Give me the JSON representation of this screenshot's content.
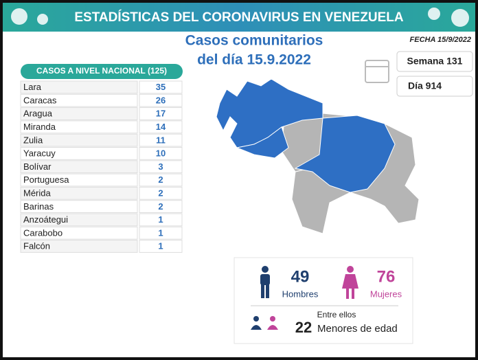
{
  "header": {
    "title": "ESTADÍSTICAS DEL CORONAVIRUS EN VENEZUELA",
    "subtitle_line1": "Casos comunitarios",
    "subtitle_line2": "del día 15.9.2022",
    "date": "FECHA 15/9/2022",
    "week": "Semana 131",
    "day": "Día 914"
  },
  "table": {
    "title": "CASOS A NIVEL NACIONAL (125)",
    "rows": [
      [
        "Lara",
        35
      ],
      [
        "Caracas",
        26
      ],
      [
        "Aragua",
        17
      ],
      [
        "Miranda",
        14
      ],
      [
        "Zulia",
        11
      ],
      [
        "Yaracuy",
        10
      ],
      [
        "Bolívar",
        3
      ],
      [
        "Portuguesa",
        2
      ],
      [
        "Mérida",
        2
      ],
      [
        "Barinas",
        2
      ],
      [
        "Anzoátegui",
        1
      ],
      [
        "Carabobo",
        1
      ],
      [
        "Falcón",
        1
      ]
    ]
  },
  "summary": {
    "men_count": 49,
    "men_label": "Hombres",
    "women_count": 76,
    "women_label": "Mujeres",
    "minors_intro": "Entre ellos",
    "minors_count": 22,
    "minors_label": "Menores de edad"
  }
}
